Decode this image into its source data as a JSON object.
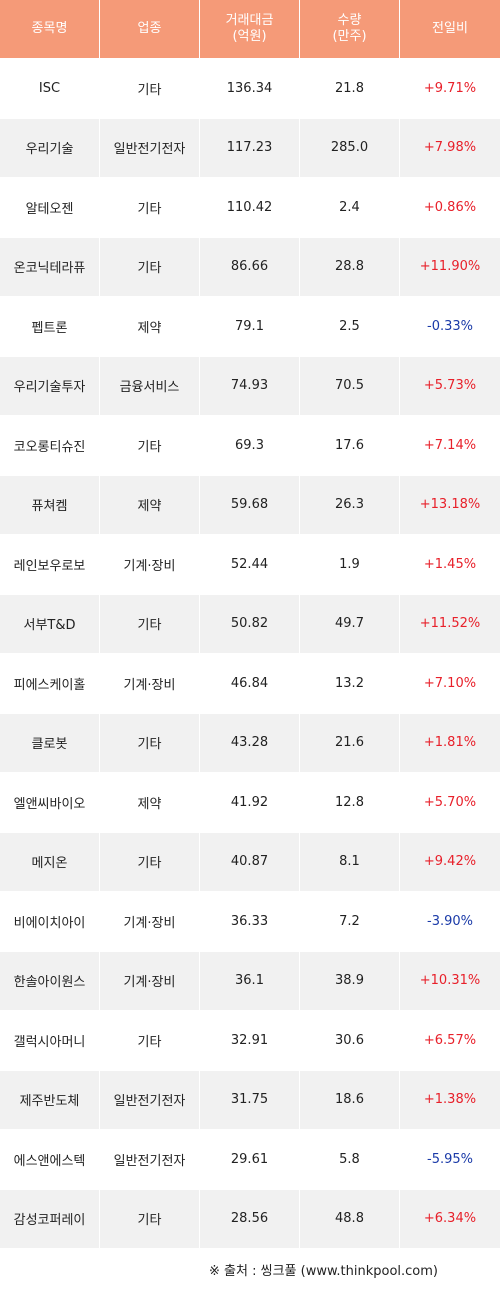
{
  "colors": {
    "header_bg": "#f59a78",
    "header_text": "#ffffff",
    "row_alt_bg": "#f1f1f1",
    "up": "#e8202a",
    "down": "#1a3aa8"
  },
  "table": {
    "headers": [
      {
        "line1": "종목명",
        "line2": ""
      },
      {
        "line1": "업종",
        "line2": ""
      },
      {
        "line1": "거래대금",
        "line2": "(억원)"
      },
      {
        "line1": "수량",
        "line2": "(만주)"
      },
      {
        "line1": "전일비",
        "line2": ""
      }
    ],
    "rows": [
      {
        "name": "ISC",
        "sector": "기타",
        "amount": "136.34",
        "volume": "21.8",
        "change": "+9.71%",
        "dir": "up"
      },
      {
        "name": "우리기술",
        "sector": "일반전기전자",
        "amount": "117.23",
        "volume": "285.0",
        "change": "+7.98%",
        "dir": "up"
      },
      {
        "name": "알테오젠",
        "sector": "기타",
        "amount": "110.42",
        "volume": "2.4",
        "change": "+0.86%",
        "dir": "up"
      },
      {
        "name": "온코닉테라퓨",
        "sector": "기타",
        "amount": "86.66",
        "volume": "28.8",
        "change": "+11.90%",
        "dir": "up"
      },
      {
        "name": "펩트론",
        "sector": "제약",
        "amount": "79.1",
        "volume": "2.5",
        "change": "-0.33%",
        "dir": "down"
      },
      {
        "name": "우리기술투자",
        "sector": "금융서비스",
        "amount": "74.93",
        "volume": "70.5",
        "change": "+5.73%",
        "dir": "up"
      },
      {
        "name": "코오롱티슈진",
        "sector": "기타",
        "amount": "69.3",
        "volume": "17.6",
        "change": "+7.14%",
        "dir": "up"
      },
      {
        "name": "퓨쳐켐",
        "sector": "제약",
        "amount": "59.68",
        "volume": "26.3",
        "change": "+13.18%",
        "dir": "up"
      },
      {
        "name": "레인보우로보",
        "sector": "기계·장비",
        "amount": "52.44",
        "volume": "1.9",
        "change": "+1.45%",
        "dir": "up"
      },
      {
        "name": "서부T&D",
        "sector": "기타",
        "amount": "50.82",
        "volume": "49.7",
        "change": "+11.52%",
        "dir": "up"
      },
      {
        "name": "피에스케이홀",
        "sector": "기계·장비",
        "amount": "46.84",
        "volume": "13.2",
        "change": "+7.10%",
        "dir": "up"
      },
      {
        "name": "클로봇",
        "sector": "기타",
        "amount": "43.28",
        "volume": "21.6",
        "change": "+1.81%",
        "dir": "up"
      },
      {
        "name": "엘앤씨바이오",
        "sector": "제약",
        "amount": "41.92",
        "volume": "12.8",
        "change": "+5.70%",
        "dir": "up"
      },
      {
        "name": "메지온",
        "sector": "기타",
        "amount": "40.87",
        "volume": "8.1",
        "change": "+9.42%",
        "dir": "up"
      },
      {
        "name": "비에이치아이",
        "sector": "기계·장비",
        "amount": "36.33",
        "volume": "7.2",
        "change": "-3.90%",
        "dir": "down"
      },
      {
        "name": "한솔아이원스",
        "sector": "기계·장비",
        "amount": "36.1",
        "volume": "38.9",
        "change": "+10.31%",
        "dir": "up"
      },
      {
        "name": "갤럭시아머니",
        "sector": "기타",
        "amount": "32.91",
        "volume": "30.6",
        "change": "+6.57%",
        "dir": "up"
      },
      {
        "name": "제주반도체",
        "sector": "일반전기전자",
        "amount": "31.75",
        "volume": "18.6",
        "change": "+1.38%",
        "dir": "up"
      },
      {
        "name": "에스앤에스텍",
        "sector": "일반전기전자",
        "amount": "29.61",
        "volume": "5.8",
        "change": "-5.95%",
        "dir": "down"
      },
      {
        "name": "감성코퍼레이",
        "sector": "기타",
        "amount": "28.56",
        "volume": "48.8",
        "change": "+6.34%",
        "dir": "up"
      }
    ]
  },
  "footer": {
    "source": "※ 출처 : 씽크풀 (www.thinkpool.com)"
  }
}
